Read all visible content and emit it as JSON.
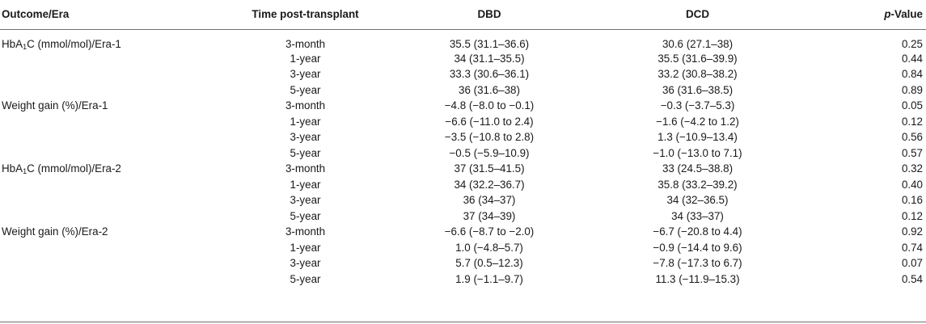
{
  "headers": {
    "outcome": "Outcome/Era",
    "time": "Time post-transplant",
    "dbd": "DBD",
    "dcd": "DCD",
    "pvalue_italic": "p",
    "pvalue_rest": "-Value"
  },
  "rows": [
    {
      "outcome_pre": "HbA",
      "outcome_sub": "1",
      "outcome_post": "C (mmol/mol)/Era-1",
      "time": "3-month",
      "dbd": "35.5 (31.1–36.6)",
      "dcd": "30.6 (27.1–38)",
      "p": "0.25"
    },
    {
      "outcome_pre": "",
      "outcome_sub": "",
      "outcome_post": "",
      "time": "1-year",
      "dbd": "34 (31.1–35.5)",
      "dcd": "35.5 (31.6–39.9)",
      "p": "0.44"
    },
    {
      "outcome_pre": "",
      "outcome_sub": "",
      "outcome_post": "",
      "time": "3-year",
      "dbd": "33.3 (30.6–36.1)",
      "dcd": "33.2 (30.8–38.2)",
      "p": "0.84"
    },
    {
      "outcome_pre": "",
      "outcome_sub": "",
      "outcome_post": "",
      "time": "5-year",
      "dbd": "36 (31.6–38)",
      "dcd": "36 (31.6–38.5)",
      "p": "0.89"
    },
    {
      "outcome_pre": "Weight gain (%)/Era-1",
      "outcome_sub": "",
      "outcome_post": "",
      "time": "3-month",
      "dbd": "−4.8 (−8.0 to −0.1)",
      "dcd": "−0.3 (−3.7–5.3)",
      "p": "0.05"
    },
    {
      "outcome_pre": "",
      "outcome_sub": "",
      "outcome_post": "",
      "time": "1-year",
      "dbd": "−6.6 (−11.0 to 2.4)",
      "dcd": "−1.6 (−4.2 to 1.2)",
      "p": "0.12"
    },
    {
      "outcome_pre": "",
      "outcome_sub": "",
      "outcome_post": "",
      "time": "3-year",
      "dbd": "−3.5 (−10.8 to 2.8)",
      "dcd": "1.3 (−10.9–13.4)",
      "p": "0.56"
    },
    {
      "outcome_pre": "",
      "outcome_sub": "",
      "outcome_post": "",
      "time": "5-year",
      "dbd": "−0.5 (−5.9–10.9)",
      "dcd": "−1.0 (−13.0 to 7.1)",
      "p": "0.57"
    },
    {
      "outcome_pre": "HbA",
      "outcome_sub": "1",
      "outcome_post": "C (mmol/mol)/Era-2",
      "time": "3-month",
      "dbd": "37 (31.5–41.5)",
      "dcd": "33 (24.5–38.8)",
      "p": "0.32"
    },
    {
      "outcome_pre": "",
      "outcome_sub": "",
      "outcome_post": "",
      "time": "1-year",
      "dbd": "34 (32.2–36.7)",
      "dcd": "35.8 (33.2–39.2)",
      "p": "0.40"
    },
    {
      "outcome_pre": "",
      "outcome_sub": "",
      "outcome_post": "",
      "time": "3-year",
      "dbd": "36 (34–37)",
      "dcd": "34 (32–36.5)",
      "p": "0.16"
    },
    {
      "outcome_pre": "",
      "outcome_sub": "",
      "outcome_post": "",
      "time": "5-year",
      "dbd": "37 (34–39)",
      "dcd": "34 (33–37)",
      "p": "0.12"
    },
    {
      "outcome_pre": "Weight gain (%)/Era-2",
      "outcome_sub": "",
      "outcome_post": "",
      "time": "3-month",
      "dbd": "−6.6 (−8.7 to −2.0)",
      "dcd": "−6.7 (−20.8 to 4.4)",
      "p": "0.92"
    },
    {
      "outcome_pre": "",
      "outcome_sub": "",
      "outcome_post": "",
      "time": "1-year",
      "dbd": "1.0 (−4.8–5.7)",
      "dcd": "−0.9 (−14.4 to 9.6)",
      "p": "0.74"
    },
    {
      "outcome_pre": "",
      "outcome_sub": "",
      "outcome_post": "",
      "time": "3-year",
      "dbd": "5.7 (0.5–12.3)",
      "dcd": "−7.8 (−17.3 to 6.7)",
      "p": "0.07"
    },
    {
      "outcome_pre": "",
      "outcome_sub": "",
      "outcome_post": "",
      "time": "5-year",
      "dbd": "1.9 (−1.1–9.7)",
      "dcd": "11.3 (−11.9–15.3)",
      "p": "0.54"
    }
  ]
}
